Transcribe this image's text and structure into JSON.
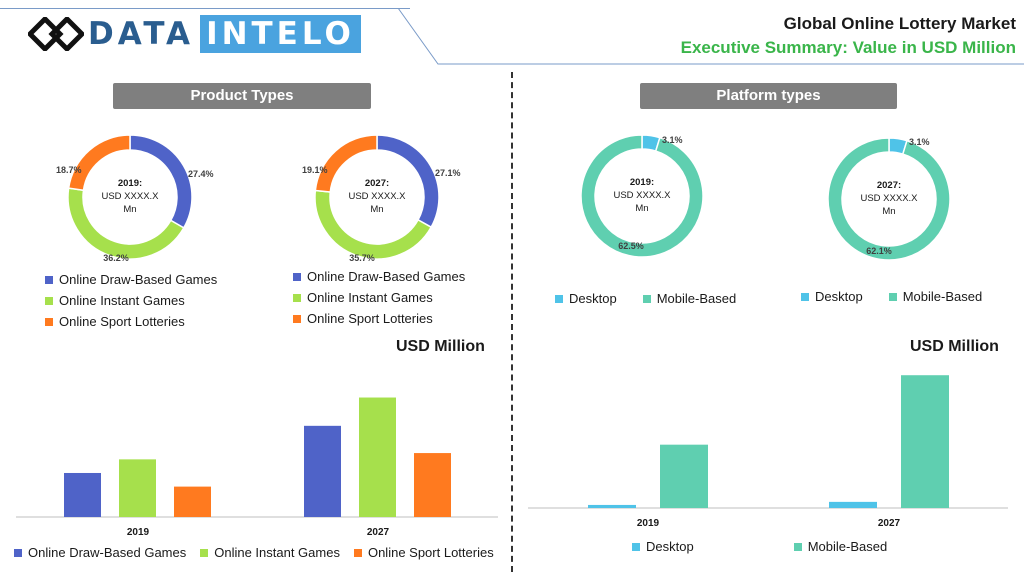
{
  "header": {
    "logo_part1": "DATA",
    "logo_part2": "INTELO",
    "title": "Global Online Lottery Market",
    "subtitle": "Executive Summary: Value in USD Million"
  },
  "sections": {
    "left_title": "Product Types",
    "right_title": "Platform types"
  },
  "unit_label": "USD Million",
  "colors": {
    "draw": "#4f63c8",
    "instant": "#a6e04c",
    "sport": "#ff7a1f",
    "desktop": "#4fc3e8",
    "mobile": "#5fcfb0",
    "pill": "#7f7f7f",
    "accent_green": "#3ab54a"
  },
  "chart_data": [
    {
      "type": "pie",
      "id": "product-2019",
      "center_label": [
        "2019:",
        "USD XXXX.X",
        "Mn"
      ],
      "labels": [
        "Online Draw-Based Games",
        "Online Instant Games",
        "Online Sport Lotteries"
      ],
      "values": [
        27.4,
        36.2,
        18.7
      ],
      "value_labels": [
        "27.4%",
        "36.2%",
        "18.7%"
      ]
    },
    {
      "type": "pie",
      "id": "product-2027",
      "center_label": [
        "2027:",
        "USD XXXX.X",
        "Mn"
      ],
      "labels": [
        "Online Draw-Based Games",
        "Online Instant Games",
        "Online Sport Lotteries"
      ],
      "values": [
        27.1,
        35.7,
        19.1
      ],
      "value_labels": [
        "27.1%",
        "35.7%",
        "19.1%"
      ]
    },
    {
      "type": "pie",
      "id": "platform-2019",
      "center_label": [
        "2019:",
        "USD XXXX.X",
        "Mn"
      ],
      "labels": [
        "Desktop",
        "Mobile-Based"
      ],
      "values": [
        3.1,
        62.5
      ],
      "value_labels": [
        "3.1%",
        "62.5%"
      ]
    },
    {
      "type": "pie",
      "id": "platform-2027",
      "center_label": [
        "2027:",
        "USD XXXX.X",
        "Mn"
      ],
      "labels": [
        "Desktop",
        "Mobile-Based"
      ],
      "values": [
        3.1,
        62.1
      ],
      "value_labels": [
        "3.1%",
        "62.1%"
      ]
    },
    {
      "type": "bar",
      "id": "product-bars",
      "categories": [
        "2019",
        "2027"
      ],
      "series": [
        {
          "name": "Online Draw-Based Games",
          "values": [
            42,
            87
          ]
        },
        {
          "name": "Online Instant Games",
          "values": [
            55,
            114
          ]
        },
        {
          "name": "Online Sport Lotteries",
          "values": [
            29,
            61
          ]
        }
      ],
      "ylim": [
        0,
        125
      ]
    },
    {
      "type": "bar",
      "id": "platform-bars",
      "categories": [
        "2019",
        "2027"
      ],
      "series": [
        {
          "name": "Desktop",
          "values": [
            3,
            6
          ]
        },
        {
          "name": "Mobile-Based",
          "values": [
            62,
            130
          ]
        }
      ],
      "ylim": [
        0,
        140
      ]
    }
  ]
}
